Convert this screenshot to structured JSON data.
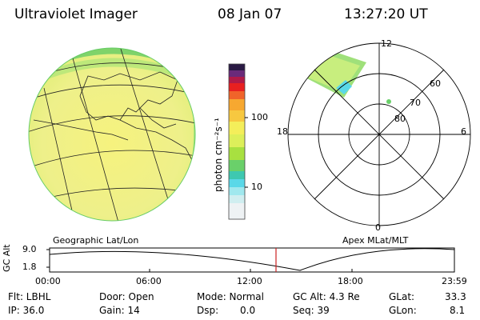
{
  "header": {
    "instrument": "Ultraviolet Imager",
    "date": "08 Jan 07",
    "time": "13:27:20 UT"
  },
  "colorbar": {
    "label": "photon cm⁻²s⁻¹",
    "ticks": [
      "100",
      "10"
    ]
  },
  "polar_plot": {
    "mlt_labels": {
      "top": "12",
      "left": "18",
      "right": "6",
      "bottom": "0"
    },
    "lat_labels": [
      "60",
      "70",
      "80"
    ]
  },
  "panel_labels": {
    "left": "Geographic Lat/Lon",
    "right": "Apex MLat/MLT"
  },
  "altitude_plot": {
    "ylabel": "GC Alt",
    "yticks": [
      "9.0",
      "1.8"
    ],
    "xticks": [
      "00:00",
      "06:00",
      "12:00",
      "18:00",
      "23:59"
    ],
    "marker_color": "#cc2222"
  },
  "info": {
    "flt": "Flt: LBHL",
    "ip": "IP: 36.0",
    "door": "Door: Open",
    "gain": "Gain: 14",
    "mode": "Mode: Normal",
    "dsp_label": "Dsp:",
    "dsp_value": "0.0",
    "gc_alt": "GC Alt: 4.3 Re",
    "seq": "Seq: 39",
    "glat_label": "GLat:",
    "glat_value": "33.3",
    "glon_label": "GLon:",
    "glon_value": "8.1"
  }
}
